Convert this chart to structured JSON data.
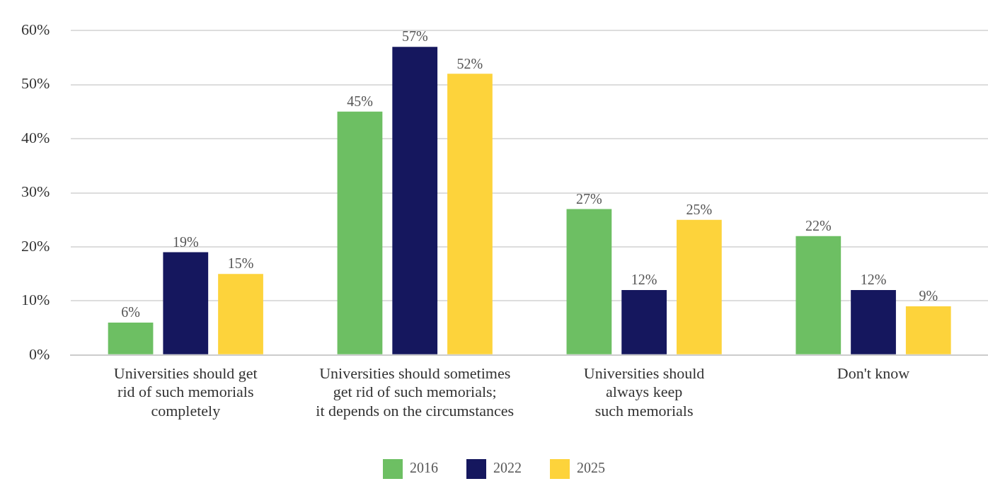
{
  "chart_data": {
    "type": "bar",
    "categories": [
      "Universities should get\nrid of such memorials\ncompletely",
      "Universities should sometimes\nget rid of such memorials;\nit depends on the circumstances",
      "Universities should\nalways keep\nsuch memorials",
      "Don't know"
    ],
    "series": [
      {
        "name": "2016",
        "color": "#6dbf63",
        "values": [
          6,
          45,
          27,
          22
        ],
        "value_labels": [
          "6%",
          "45%",
          "27%",
          "22%"
        ]
      },
      {
        "name": "2022",
        "color": "#15175e",
        "values": [
          19,
          57,
          12,
          12
        ],
        "value_labels": [
          "19%",
          "57%",
          "12%",
          "12%"
        ]
      },
      {
        "name": "2025",
        "color": "#fdd33b",
        "values": [
          15,
          52,
          25,
          9
        ],
        "value_labels": [
          "15%",
          "52%",
          "25%",
          "9%"
        ]
      }
    ],
    "ylim": [
      0,
      60
    ],
    "yticks": [
      {
        "value": 0,
        "label": "0%"
      },
      {
        "value": 10,
        "label": "10%"
      },
      {
        "value": 20,
        "label": "20%"
      },
      {
        "value": 30,
        "label": "30%"
      },
      {
        "value": 40,
        "label": "40%"
      },
      {
        "value": 50,
        "label": "50%"
      },
      {
        "value": 60,
        "label": "60%"
      }
    ],
    "grid": "y",
    "legend": "bottom"
  }
}
